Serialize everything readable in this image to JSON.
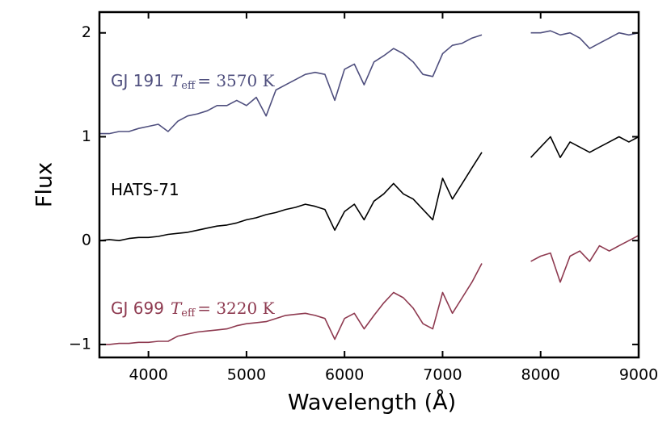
{
  "chart_data": {
    "type": "line",
    "xlabel": "Wavelength (Å)",
    "ylabel": "Flux",
    "x": [
      3500,
      3600,
      3700,
      3800,
      3900,
      4000,
      4100,
      4200,
      4300,
      4400,
      4500,
      4600,
      4700,
      4800,
      4900,
      5000,
      5100,
      5200,
      5300,
      5400,
      5500,
      5600,
      5700,
      5800,
      5900,
      6000,
      6100,
      6200,
      6300,
      6400,
      6500,
      6600,
      6700,
      6800,
      6900,
      7000,
      7100,
      7200,
      7300,
      7400,
      7500,
      7900,
      8000,
      8100,
      8200,
      8300,
      8400,
      8500,
      8600,
      8700,
      8800,
      8900,
      9000
    ],
    "series": [
      {
        "name": "GJ 191",
        "color": "#4f4f7e",
        "teff": {
          "symbol": "T",
          "subscript": "eff",
          "value": "= 3570 K"
        },
        "values": [
          1.03,
          1.03,
          1.05,
          1.05,
          1.08,
          1.1,
          1.12,
          1.05,
          1.15,
          1.2,
          1.22,
          1.25,
          1.3,
          1.3,
          1.35,
          1.3,
          1.38,
          1.2,
          1.45,
          1.5,
          1.55,
          1.6,
          1.62,
          1.6,
          1.35,
          1.65,
          1.7,
          1.5,
          1.72,
          1.78,
          1.85,
          1.8,
          1.72,
          1.6,
          1.58,
          1.8,
          1.88,
          1.9,
          1.95,
          1.98,
          null,
          2.0,
          2.0,
          2.02,
          1.98,
          2.0,
          1.95,
          1.85,
          1.9,
          1.95,
          2.0,
          1.98,
          2.0
        ]
      },
      {
        "name": "HATS-71",
        "color": "#000000",
        "values": [
          0,
          0.01,
          0.0,
          0.02,
          0.03,
          0.03,
          0.04,
          0.06,
          0.07,
          0.08,
          0.1,
          0.12,
          0.14,
          0.15,
          0.17,
          0.2,
          0.22,
          0.25,
          0.27,
          0.3,
          0.32,
          0.35,
          0.33,
          0.3,
          0.1,
          0.28,
          0.35,
          0.2,
          0.38,
          0.45,
          0.55,
          0.45,
          0.4,
          0.3,
          0.2,
          0.6,
          0.4,
          0.55,
          0.7,
          0.85,
          null,
          0.8,
          0.9,
          1.0,
          0.8,
          0.95,
          0.9,
          0.85,
          0.9,
          0.95,
          1.0,
          0.95,
          1.0
        ]
      },
      {
        "name": "GJ 699",
        "color": "#8e3a50",
        "teff": {
          "symbol": "T",
          "subscript": "eff",
          "value": "= 3220 K"
        },
        "values": [
          -1.0,
          -1.0,
          -0.99,
          -0.99,
          -0.98,
          -0.98,
          -0.97,
          -0.97,
          -0.92,
          -0.9,
          -0.88,
          -0.87,
          -0.86,
          -0.85,
          -0.82,
          -0.8,
          -0.79,
          -0.78,
          -0.75,
          -0.72,
          -0.71,
          -0.7,
          -0.72,
          -0.75,
          -0.95,
          -0.75,
          -0.7,
          -0.85,
          -0.72,
          -0.6,
          -0.5,
          -0.55,
          -0.65,
          -0.8,
          -0.85,
          -0.5,
          -0.7,
          -0.55,
          -0.4,
          -0.22,
          null,
          -0.2,
          -0.15,
          -0.12,
          -0.4,
          -0.15,
          -0.1,
          -0.2,
          -0.05,
          -0.1,
          -0.05,
          0.0,
          0.05
        ]
      }
    ],
    "xlim": [
      3500,
      9000
    ],
    "xticks": [
      4000,
      5000,
      6000,
      7000,
      8000,
      9000
    ],
    "ylim": [
      -1.125,
      2.2
    ],
    "yticks": [
      {
        "value": -1,
        "label": "−1"
      },
      0,
      1,
      2
    ],
    "grid": false
  }
}
